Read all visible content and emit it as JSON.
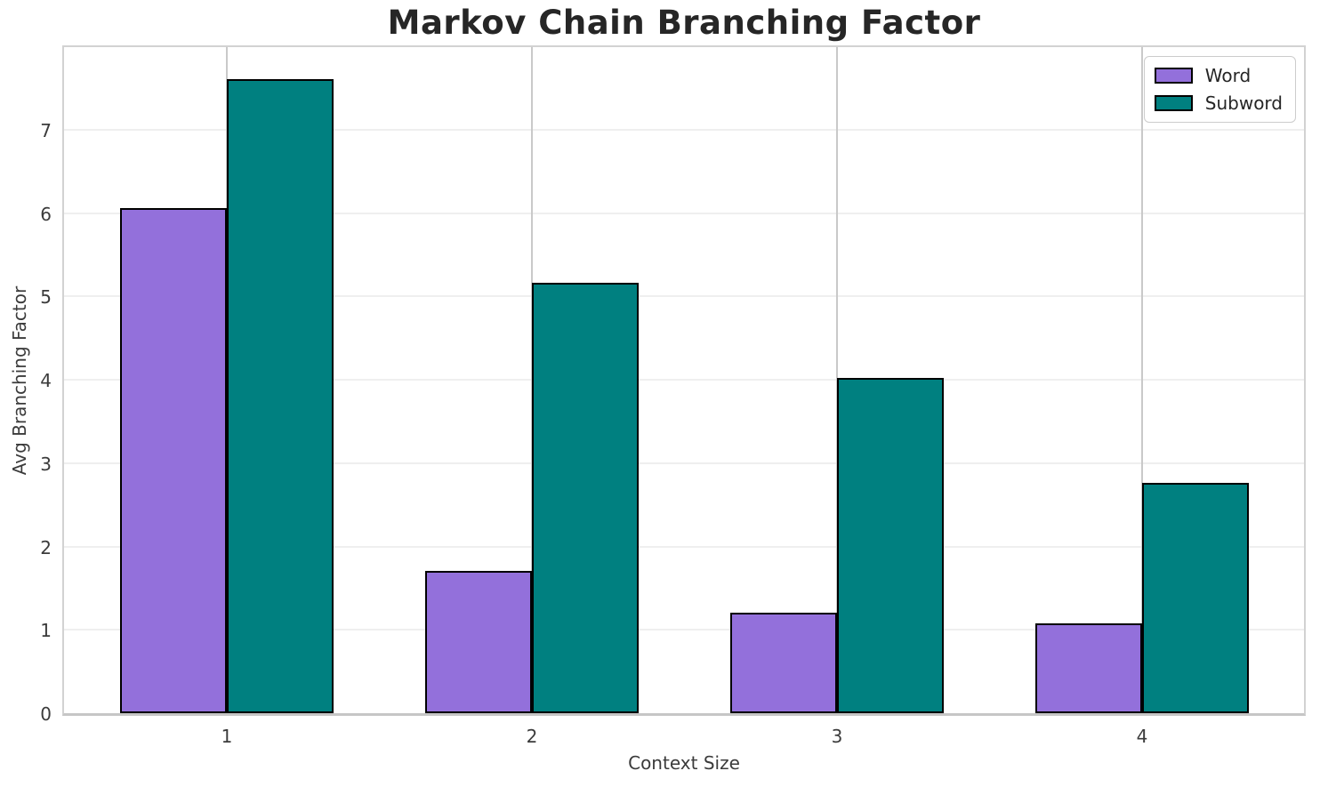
{
  "chart_data": {
    "type": "bar",
    "title": "Markov Chain Branching Factor",
    "xlabel": "Context Size",
    "ylabel": "Avg Branching Factor",
    "categories": [
      "1",
      "2",
      "3",
      "4"
    ],
    "series": [
      {
        "name": "Word",
        "color": "#9370DB",
        "values": [
          6.06,
          1.71,
          1.21,
          1.08
        ]
      },
      {
        "name": "Subword",
        "color": "#008080",
        "values": [
          7.6,
          5.16,
          4.02,
          2.76
        ]
      }
    ],
    "ylim": [
      0,
      8
    ],
    "yticks": [
      0,
      1,
      2,
      3,
      4,
      5,
      6,
      7
    ],
    "grid": true,
    "legend": {
      "position": "upper-right",
      "entries": [
        "Word",
        "Subword"
      ]
    },
    "bar_edge_color": "#000000",
    "style": {
      "title_color": "#262626",
      "tick_color": "#3b3b3b",
      "grid_color_horizontal": "#efefef",
      "grid_color_vertical": "#c9c9c9",
      "spine_color": "#d2d2d2",
      "legend_border_color": "#cccccc",
      "background": "#ffffff"
    }
  }
}
